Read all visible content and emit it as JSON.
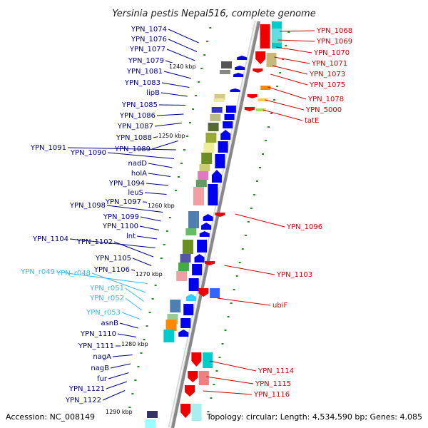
{
  "title": "Yersinia pestis Nepal516, complete genome",
  "footer": {
    "accession": "Accession: NC_008149",
    "topology": "Topology: circular; Length: 4,534,590 bp; Genes: 4,085"
  },
  "colors": {
    "plus_strand_gene": "#0000ee",
    "minus_strand_gene": "#ee0000",
    "rna_gene": "#33ccff",
    "label_plus": "#000088",
    "label_minus": "#cc0000",
    "label_rna": "#33bbee",
    "axis": "#999999",
    "tick_dot": "#228b22"
  },
  "scale_ticks": [
    "1240 kbp",
    "1250 kbp",
    "1260 kbp",
    "1270 kbp",
    "1280 kbp",
    "1290 kbp"
  ],
  "left_labels": [
    {
      "text": "YPN_1074",
      "kind": "plus"
    },
    {
      "text": "YPN_1076",
      "kind": "plus"
    },
    {
      "text": "YPN_1077",
      "kind": "plus"
    },
    {
      "text": "YPN_1079",
      "kind": "plus"
    },
    {
      "text": "YPN_1081",
      "kind": "plus"
    },
    {
      "text": "YPN_1083",
      "kind": "plus"
    },
    {
      "text": "lipB",
      "kind": "plus"
    },
    {
      "text": "YPN_1085",
      "kind": "plus"
    },
    {
      "text": "YPN_1086",
      "kind": "plus"
    },
    {
      "text": "YPN_1087",
      "kind": "plus"
    },
    {
      "text": "YPN_1088",
      "kind": "plus"
    },
    {
      "text": "YPN_1089",
      "kind": "plus"
    },
    {
      "text": "YPN_1091",
      "kind": "plus"
    },
    {
      "text": "YPN_1090",
      "kind": "plus"
    },
    {
      "text": "nadD",
      "kind": "plus"
    },
    {
      "text": "holA",
      "kind": "plus"
    },
    {
      "text": "YPN_1094",
      "kind": "plus"
    },
    {
      "text": "leuS",
      "kind": "plus"
    },
    {
      "text": "YPN_1097",
      "kind": "plus"
    },
    {
      "text": "YPN_1098",
      "kind": "plus"
    },
    {
      "text": "YPN_1099",
      "kind": "plus"
    },
    {
      "text": "YPN_1100",
      "kind": "plus"
    },
    {
      "text": "lnt",
      "kind": "plus"
    },
    {
      "text": "YPN_1104",
      "kind": "plus"
    },
    {
      "text": "YPN_1102",
      "kind": "plus"
    },
    {
      "text": "YPN_1105",
      "kind": "plus"
    },
    {
      "text": "YPN_1106",
      "kind": "plus"
    },
    {
      "text": "YPN_r049",
      "kind": "rna"
    },
    {
      "text": "YPN_r048",
      "kind": "rna"
    },
    {
      "text": "YPN_r051",
      "kind": "rna"
    },
    {
      "text": "YPN_r052",
      "kind": "rna"
    },
    {
      "text": "YPN_r053",
      "kind": "rna"
    },
    {
      "text": "asnB",
      "kind": "plus"
    },
    {
      "text": "YPN_1110",
      "kind": "plus"
    },
    {
      "text": "YPN_1111",
      "kind": "plus"
    },
    {
      "text": "nagA",
      "kind": "plus"
    },
    {
      "text": "nagB",
      "kind": "plus"
    },
    {
      "text": "fur",
      "kind": "plus"
    },
    {
      "text": "YPN_1121",
      "kind": "plus"
    },
    {
      "text": "YPN_1122",
      "kind": "plus"
    }
  ],
  "right_labels": [
    {
      "text": "YPN_1068",
      "kind": "minus"
    },
    {
      "text": "YPN_1069",
      "kind": "minus"
    },
    {
      "text": "YPN_1070",
      "kind": "minus"
    },
    {
      "text": "YPN_1071",
      "kind": "minus"
    },
    {
      "text": "YPN_1073",
      "kind": "minus"
    },
    {
      "text": "YPN_1075",
      "kind": "minus"
    },
    {
      "text": "YPN_1078",
      "kind": "minus"
    },
    {
      "text": "YPN_5000",
      "kind": "minus"
    },
    {
      "text": "tatE",
      "kind": "minus"
    },
    {
      "text": "YPN_1096",
      "kind": "minus"
    },
    {
      "text": "YPN_1103",
      "kind": "minus"
    },
    {
      "text": "ubiF",
      "kind": "minus"
    },
    {
      "text": "YPN_1114",
      "kind": "minus"
    },
    {
      "text": "YPN_1115",
      "kind": "minus"
    },
    {
      "text": "YPN_1116",
      "kind": "minus"
    }
  ]
}
